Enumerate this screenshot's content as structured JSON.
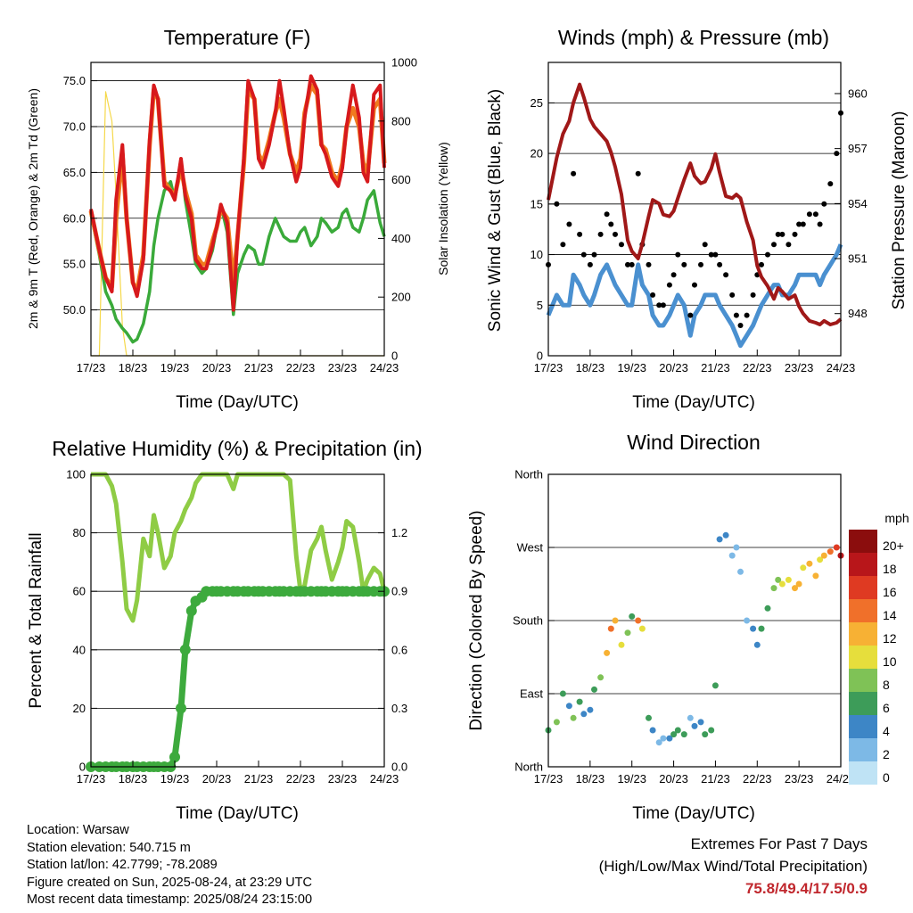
{
  "x_ticks": [
    "17/23",
    "18/23",
    "19/23",
    "20/23",
    "21/23",
    "22/23",
    "23/23",
    "24/23"
  ],
  "chart_data": [
    {
      "type": "line",
      "title": "Temperature (F)",
      "xlabel": "Time (Day/UTC)",
      "ylabel": "2m & 9m T (Red, Orange) & 2m Td (Green)",
      "ylabel_right": "Solar Insolation (Yellow)",
      "x": [
        17.0,
        17.2,
        17.35,
        17.5,
        17.6,
        17.75,
        17.85,
        18.0,
        18.1,
        18.25,
        18.4,
        18.5,
        18.6,
        18.75,
        18.9,
        19.0,
        19.15,
        19.25,
        19.4,
        19.5,
        19.65,
        19.75,
        19.9,
        20.0,
        20.1,
        20.25,
        20.4,
        20.5,
        20.65,
        20.75,
        20.9,
        21.0,
        21.1,
        21.25,
        21.4,
        21.5,
        21.6,
        21.75,
        21.9,
        22.0,
        22.1,
        22.25,
        22.4,
        22.5,
        22.6,
        22.75,
        22.9,
        23.0,
        23.1,
        23.25,
        23.4,
        23.5,
        23.6,
        23.75,
        23.9,
        24.0
      ],
      "ylim": [
        45,
        77
      ],
      "yticks": [
        "50.0",
        "55.0",
        "60.0",
        "65.0",
        "70.0",
        "75.0"
      ],
      "y2lim": [
        0,
        1000
      ],
      "y2ticks": [
        "0",
        "200",
        "400",
        "600",
        "800",
        "1000"
      ],
      "grid": true,
      "colors": {
        "t2m": "#d7191c",
        "t9m": "#f07a1e",
        "td2m": "#3aaa3a",
        "solar": "#f5d84a"
      },
      "series": [
        {
          "key": "t9m",
          "values": [
            60.8,
            56.5,
            53.5,
            52.5,
            60.0,
            67.0,
            60.0,
            53.0,
            52.0,
            56.0,
            68.0,
            74.0,
            73.0,
            64.0,
            63.0,
            62.5,
            65.5,
            63.0,
            60.5,
            56.0,
            55.0,
            55.0,
            57.5,
            59.0,
            61.0,
            60.0,
            53.0,
            58.0,
            66.0,
            74.0,
            73.0,
            67.0,
            66.0,
            68.5,
            71.5,
            73.0,
            71.0,
            67.0,
            65.0,
            66.5,
            71.5,
            74.5,
            73.5,
            68.0,
            67.5,
            65.0,
            64.0,
            66.0,
            70.0,
            72.0,
            70.0,
            66.0,
            65.0,
            72.0,
            73.0,
            66.0
          ]
        },
        {
          "key": "t2m",
          "values": [
            61.0,
            56.5,
            53.5,
            52.0,
            62.0,
            68.0,
            60.0,
            53.0,
            51.5,
            55.5,
            68.5,
            74.5,
            73.0,
            63.5,
            63.0,
            62.0,
            66.5,
            62.5,
            60.0,
            55.5,
            54.5,
            54.5,
            57.0,
            59.0,
            61.5,
            59.5,
            50.0,
            58.0,
            66.5,
            75.0,
            73.0,
            66.5,
            65.5,
            68.0,
            71.5,
            75.0,
            72.0,
            67.0,
            64.0,
            65.5,
            71.0,
            75.5,
            74.0,
            68.0,
            67.0,
            64.5,
            63.5,
            65.5,
            70.0,
            74.5,
            71.0,
            65.0,
            64.0,
            73.5,
            74.5,
            65.5
          ]
        },
        {
          "key": "td2m",
          "values": [
            60.5,
            56.0,
            52.0,
            50.5,
            49.0,
            48.0,
            47.5,
            46.5,
            46.8,
            48.5,
            52.0,
            57.0,
            60.0,
            63.0,
            64.0,
            62.0,
            66.5,
            62.0,
            58.0,
            55.0,
            54.0,
            54.5,
            56.5,
            59.0,
            61.5,
            58.5,
            49.5,
            54.0,
            56.0,
            57.0,
            56.5,
            55.0,
            55.0,
            58.0,
            60.0,
            59.0,
            58.0,
            57.5,
            57.5,
            58.5,
            59.0,
            57.0,
            58.0,
            60.0,
            59.5,
            58.5,
            59.0,
            60.5,
            61.0,
            59.0,
            58.5,
            60.0,
            62.0,
            63.0,
            59.5,
            58.0
          ]
        },
        {
          "key": "solar",
          "values": [
            0,
            0,
            900,
            800,
            550,
            100,
            0,
            0,
            0,
            0,
            0,
            0,
            0,
            0,
            0,
            0,
            0,
            0,
            0,
            0,
            0,
            0,
            0,
            0,
            0,
            0,
            0,
            0,
            0,
            0,
            0,
            0,
            0,
            0,
            0,
            0,
            0,
            0,
            0,
            0,
            0,
            0,
            0,
            0,
            0,
            0,
            0,
            0,
            0,
            0,
            0,
            0,
            0,
            0,
            0,
            0
          ]
        }
      ]
    },
    {
      "type": "line",
      "title": "Winds (mph) & Pressure (mb)",
      "xlabel": "Time (Day/UTC)",
      "ylabel": "Sonic Wind & Gust (Blue, Black)",
      "ylabel_right": "Station Pressure (Maroon)",
      "x": [
        17.0,
        17.2,
        17.35,
        17.5,
        17.6,
        17.75,
        17.85,
        18.0,
        18.1,
        18.25,
        18.4,
        18.5,
        18.6,
        18.75,
        18.9,
        19.0,
        19.15,
        19.25,
        19.4,
        19.5,
        19.65,
        19.75,
        19.9,
        20.0,
        20.1,
        20.25,
        20.4,
        20.5,
        20.65,
        20.75,
        20.9,
        21.0,
        21.1,
        21.25,
        21.4,
        21.5,
        21.6,
        21.75,
        21.9,
        22.0,
        22.1,
        22.25,
        22.4,
        22.5,
        22.6,
        22.75,
        22.9,
        23.0,
        23.1,
        23.25,
        23.4,
        23.5,
        23.6,
        23.75,
        23.9,
        24.0
      ],
      "ylim": [
        0,
        29
      ],
      "yticks": [
        "0",
        "5",
        "10",
        "15",
        "20",
        "25"
      ],
      "y2lim": [
        945.7,
        961.7
      ],
      "y2ticks": [
        "948",
        "951",
        "954",
        "957",
        "960"
      ],
      "grid": true,
      "colors": {
        "wind": "#4a90d0",
        "gust": "#000000",
        "pressure": "#a01818"
      },
      "series": [
        {
          "key": "wind",
          "values": [
            4,
            6,
            5,
            5,
            8,
            7,
            6,
            5,
            6,
            8,
            9,
            8,
            7,
            6,
            5,
            5,
            9,
            7,
            6,
            4,
            3,
            3,
            4,
            5,
            6,
            5,
            2,
            4,
            5,
            6,
            6,
            6,
            5,
            4,
            3,
            2,
            1,
            2,
            3,
            4,
            5,
            6,
            7,
            7,
            6,
            6,
            7,
            8,
            8,
            8,
            8,
            7,
            8,
            9,
            10,
            11
          ]
        },
        {
          "key": "gust",
          "values": [
            9,
            15,
            11,
            13,
            18,
            12,
            10,
            9,
            10,
            12,
            14,
            13,
            12,
            11,
            9,
            9,
            18,
            11,
            9,
            6,
            5,
            5,
            7,
            8,
            10,
            9,
            4,
            7,
            9,
            11,
            10,
            10,
            9,
            8,
            6,
            4,
            3,
            4,
            6,
            8,
            9,
            10,
            11,
            12,
            12,
            11,
            12,
            13,
            13,
            14,
            14,
            13,
            15,
            17,
            20,
            24
          ]
        },
        {
          "key": "pressure",
          "values": [
            954.2,
            956.5,
            957.8,
            958.5,
            959.5,
            960.5,
            959.8,
            958.6,
            958.2,
            957.8,
            957.4,
            956.8,
            956.0,
            954.5,
            952.0,
            951.4,
            951.0,
            951.8,
            953.3,
            954.2,
            954.0,
            953.4,
            953.3,
            953.6,
            954.3,
            955.3,
            956.2,
            955.5,
            955.1,
            955.2,
            955.9,
            956.7,
            955.7,
            954.4,
            954.3,
            954.5,
            954.3,
            953.0,
            952.0,
            950.6,
            950.0,
            949.5,
            948.8,
            949.4,
            949.2,
            948.8,
            949.0,
            948.4,
            948.0,
            947.6,
            947.5,
            947.4,
            947.6,
            947.4,
            947.5,
            947.7
          ]
        }
      ]
    },
    {
      "type": "line",
      "title": "Relative Humidity (%) & Precipitation (in)",
      "xlabel": "Time (Day/UTC)",
      "ylabel": "Percent & Total Rainfall",
      "x": [
        17.0,
        17.2,
        17.35,
        17.5,
        17.6,
        17.75,
        17.85,
        18.0,
        18.1,
        18.25,
        18.4,
        18.5,
        18.6,
        18.75,
        18.9,
        19.0,
        19.15,
        19.25,
        19.4,
        19.5,
        19.65,
        19.75,
        19.9,
        20.0,
        20.1,
        20.25,
        20.4,
        20.5,
        20.65,
        20.75,
        20.9,
        21.0,
        21.1,
        21.25,
        21.4,
        21.5,
        21.6,
        21.75,
        21.9,
        22.0,
        22.1,
        22.25,
        22.4,
        22.5,
        22.6,
        22.75,
        22.9,
        23.0,
        23.1,
        23.25,
        23.4,
        23.5,
        23.6,
        23.75,
        23.9,
        24.0
      ],
      "ylim": [
        0,
        100
      ],
      "yticks": [
        "0",
        "20",
        "40",
        "60",
        "80",
        "100"
      ],
      "y2lim": [
        0,
        1.5
      ],
      "y2ticks": [
        "0.0",
        "0.3",
        "0.6",
        "0.9",
        "1.2"
      ],
      "grid": true,
      "colors": {
        "rh": "#8fcc45",
        "precip": "#3daa3d"
      },
      "series": [
        {
          "key": "rh",
          "values": [
            100,
            100,
            100,
            96,
            90,
            70,
            54,
            50,
            57,
            78,
            72,
            86,
            80,
            68,
            72,
            80,
            84,
            88,
            92,
            97,
            100,
            100,
            100,
            100,
            100,
            100,
            95,
            100,
            100,
            100,
            100,
            100,
            100,
            100,
            100,
            100,
            100,
            98,
            72,
            60,
            62,
            74,
            78,
            82,
            74,
            64,
            70,
            75,
            84,
            82,
            70,
            60,
            64,
            68,
            66,
            60
          ]
        },
        {
          "key": "precip",
          "values": [
            0,
            0,
            0,
            0,
            0,
            0,
            0,
            0,
            0,
            0,
            0,
            0,
            0,
            0,
            0,
            0.05,
            0.3,
            0.6,
            0.8,
            0.85,
            0.87,
            0.9,
            0.9,
            0.9,
            0.9,
            0.9,
            0.9,
            0.9,
            0.9,
            0.9,
            0.9,
            0.9,
            0.9,
            0.9,
            0.9,
            0.9,
            0.9,
            0.9,
            0.9,
            0.9,
            0.9,
            0.9,
            0.9,
            0.9,
            0.9,
            0.9,
            0.9,
            0.9,
            0.9,
            0.9,
            0.9,
            0.9,
            0.9,
            0.9,
            0.9,
            0.9
          ]
        }
      ]
    },
    {
      "type": "scatter",
      "title": "Wind Direction",
      "xlabel": "Time (Day/UTC)",
      "ylabel": "Direction (Colored By Speed)",
      "ylim": [
        0,
        360
      ],
      "yticks": [
        "North",
        "East",
        "South",
        "West",
        "North"
      ],
      "grid": true,
      "colorbar": {
        "unit": "mph",
        "labels": [
          "0",
          "2",
          "4",
          "6",
          "8",
          "10",
          "12",
          "14",
          "16",
          "18",
          "20+"
        ],
        "colors": [
          "#bfe3f5",
          "#7db9e6",
          "#3d86c6",
          "#3d9c59",
          "#7fc256",
          "#e6de3c",
          "#f7b134",
          "#f0702a",
          "#df3a22",
          "#b8161a",
          "#8b0d0d"
        ]
      },
      "x": [
        17.0,
        17.2,
        17.35,
        17.5,
        17.6,
        17.75,
        17.85,
        18.0,
        18.1,
        18.25,
        18.4,
        18.5,
        18.6,
        18.75,
        18.9,
        19.0,
        19.15,
        19.25,
        19.4,
        19.5,
        19.65,
        19.75,
        19.9,
        20.0,
        20.1,
        20.25,
        20.4,
        20.5,
        20.65,
        20.75,
        20.9,
        21.0,
        21.1,
        21.25,
        21.4,
        21.5,
        21.6,
        21.75,
        21.9,
        22.0,
        22.1,
        22.25,
        22.4,
        22.5,
        22.6,
        22.75,
        22.9,
        23.0,
        23.1,
        23.25,
        23.4,
        23.5,
        23.6,
        23.75,
        23.9,
        24.0
      ],
      "series": [
        {
          "key": "direction",
          "values": [
            45,
            55,
            90,
            75,
            60,
            80,
            65,
            70,
            95,
            110,
            140,
            170,
            180,
            150,
            165,
            185,
            180,
            170,
            60,
            45,
            30,
            35,
            35,
            40,
            45,
            40,
            60,
            50,
            55,
            40,
            45,
            100,
            280,
            285,
            260,
            270,
            240,
            180,
            170,
            150,
            170,
            195,
            220,
            230,
            225,
            230,
            220,
            225,
            245,
            250,
            235,
            255,
            260,
            265,
            270,
            260
          ]
        },
        {
          "key": "speed",
          "values": [
            6,
            8,
            5,
            4,
            7,
            5,
            4,
            4,
            6,
            8,
            12,
            13,
            11,
            9,
            7,
            6,
            13,
            9,
            6,
            3,
            2,
            2,
            4,
            5,
            6,
            5,
            1,
            3,
            4,
            5,
            5,
            5,
            3,
            3,
            2,
            1,
            1,
            2,
            3,
            4,
            5,
            6,
            7,
            8,
            9,
            9,
            11,
            12,
            10,
            12,
            11,
            10,
            12,
            14,
            16,
            18
          ]
        }
      ]
    }
  ],
  "info": {
    "location": "Location: Warsaw",
    "elevation": "Station elevation: 540.715 m",
    "latlon": "Station lat/lon: 42.7799; -78.2089",
    "created": "Figure created on Sun, 2025-08-24, at 23:29 UTC",
    "recent": "Most recent data timestamp: 2025/08/24 23:15:00"
  },
  "extremes": {
    "title": "Extremes For Past 7 Days",
    "subtitle": "(High/Low/Max Wind/Total Precipitation)",
    "values": "75.8/49.4/17.5/0.9"
  }
}
